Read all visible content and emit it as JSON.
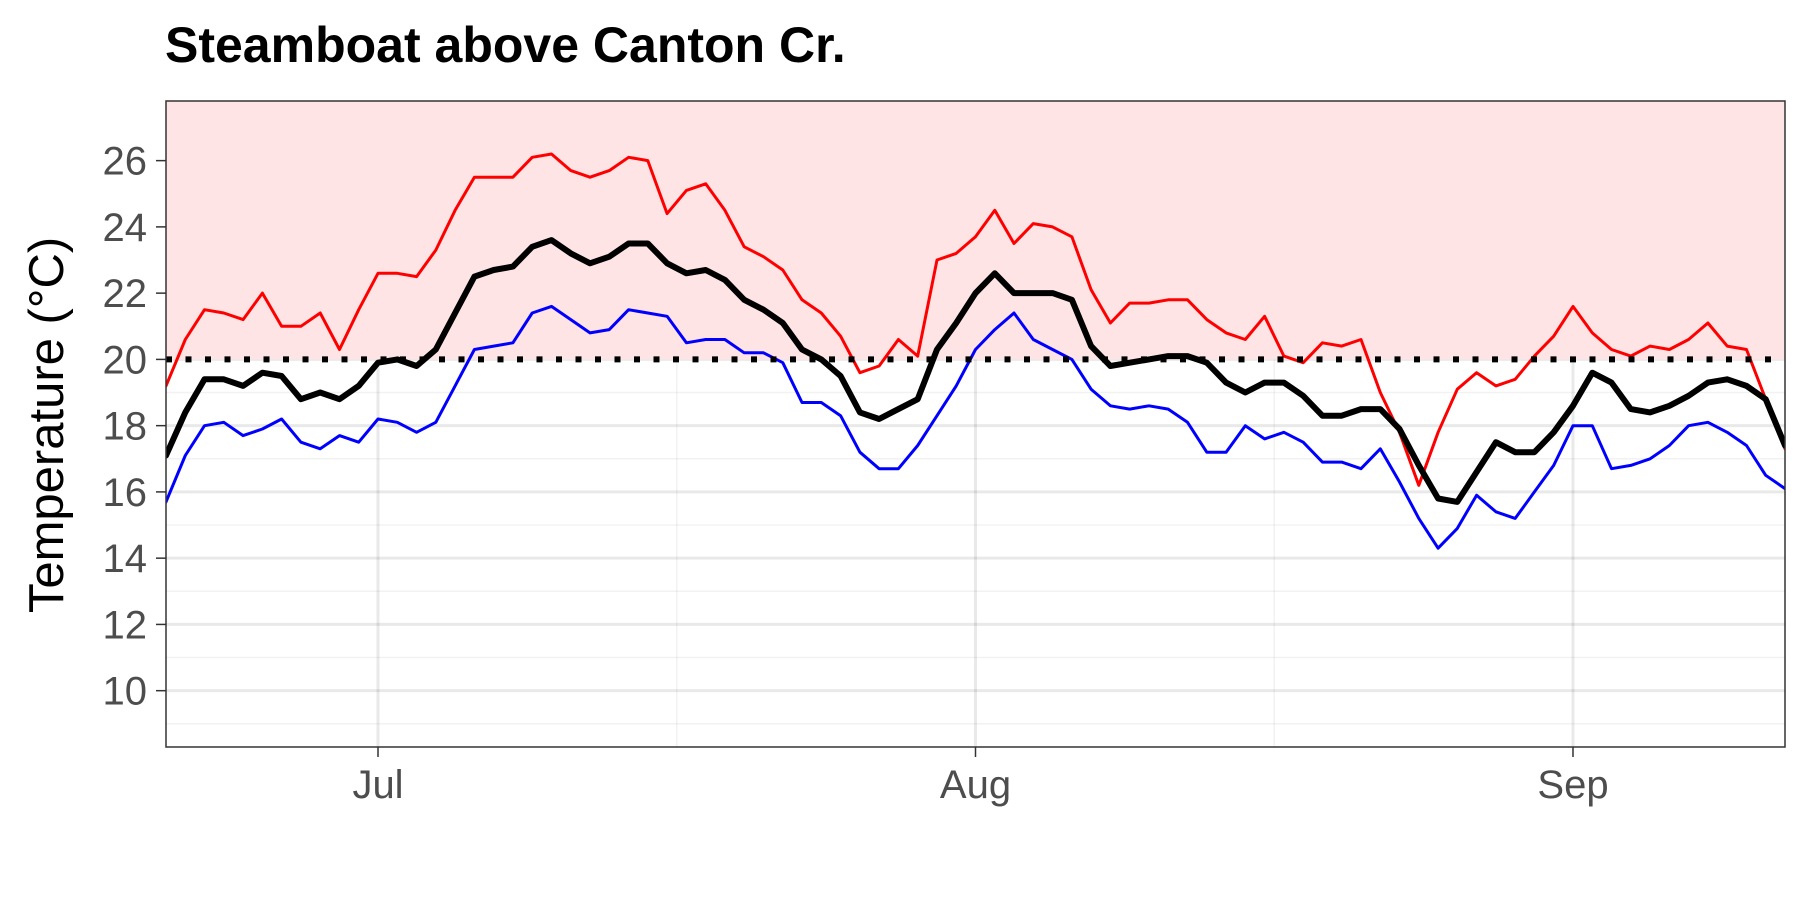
{
  "chart_data": {
    "type": "line",
    "title": "Steamboat above Canton Cr.",
    "xlabel": "",
    "ylabel": "Temperature (°C)",
    "threshold": 20,
    "shade_above_threshold": true,
    "x_start": "2023-06-20",
    "x_end": "2023-09-12",
    "x_ticks": [
      {
        "date": "2023-07-01",
        "label": "Jul"
      },
      {
        "date": "2023-08-01",
        "label": "Aug"
      },
      {
        "date": "2023-09-01",
        "label": "Sep"
      }
    ],
    "ylim": [
      8.3,
      27.8
    ],
    "y_ticks": [
      10,
      12,
      14,
      16,
      18,
      20,
      22,
      24,
      26
    ],
    "grid": true,
    "legend": "none",
    "colors": {
      "max": "#ff0000",
      "mean": "#000000",
      "min": "#0000ff",
      "shade": "#ffe4e6",
      "threshold": "#000000"
    },
    "dates": [
      "2023-06-20",
      "2023-06-21",
      "2023-06-22",
      "2023-06-23",
      "2023-06-24",
      "2023-06-25",
      "2023-06-26",
      "2023-06-27",
      "2023-06-28",
      "2023-06-29",
      "2023-06-30",
      "2023-07-01",
      "2023-07-02",
      "2023-07-03",
      "2023-07-04",
      "2023-07-05",
      "2023-07-06",
      "2023-07-07",
      "2023-07-08",
      "2023-07-09",
      "2023-07-10",
      "2023-07-11",
      "2023-07-12",
      "2023-07-13",
      "2023-07-14",
      "2023-07-15",
      "2023-07-16",
      "2023-07-17",
      "2023-07-18",
      "2023-07-19",
      "2023-07-20",
      "2023-07-21",
      "2023-07-22",
      "2023-07-23",
      "2023-07-24",
      "2023-07-25",
      "2023-07-26",
      "2023-07-27",
      "2023-07-28",
      "2023-07-29",
      "2023-07-30",
      "2023-07-31",
      "2023-08-01",
      "2023-08-02",
      "2023-08-03",
      "2023-08-04",
      "2023-08-05",
      "2023-08-06",
      "2023-08-07",
      "2023-08-08",
      "2023-08-09",
      "2023-08-10",
      "2023-08-11",
      "2023-08-12",
      "2023-08-13",
      "2023-08-14",
      "2023-08-15",
      "2023-08-16",
      "2023-08-17",
      "2023-08-18",
      "2023-08-19",
      "2023-08-20",
      "2023-08-21",
      "2023-08-22",
      "2023-08-23",
      "2023-08-24",
      "2023-08-25",
      "2023-08-26",
      "2023-08-27",
      "2023-08-28",
      "2023-08-29",
      "2023-08-30",
      "2023-08-31",
      "2023-09-01",
      "2023-09-02",
      "2023-09-03",
      "2023-09-04",
      "2023-09-05",
      "2023-09-06",
      "2023-09-07",
      "2023-09-08",
      "2023-09-09",
      "2023-09-10",
      "2023-09-11",
      "2023-09-12"
    ],
    "series": [
      {
        "key": "max",
        "values": [
          19.2,
          20.6,
          21.5,
          21.4,
          21.2,
          22.0,
          21.0,
          21.0,
          21.4,
          20.3,
          21.5,
          22.6,
          22.6,
          22.5,
          23.3,
          24.5,
          25.5,
          25.5,
          25.5,
          26.1,
          26.2,
          25.7,
          25.5,
          25.7,
          26.1,
          26.0,
          24.4,
          25.1,
          25.3,
          24.5,
          23.4,
          23.1,
          22.7,
          21.8,
          21.4,
          20.7,
          19.6,
          19.8,
          20.6,
          20.1,
          23.0,
          23.2,
          23.7,
          24.5,
          23.5,
          24.1,
          24.0,
          23.7,
          22.1,
          21.1,
          21.7,
          21.7,
          21.8,
          21.8,
          21.2,
          20.8,
          20.6,
          21.3,
          20.1,
          19.9,
          20.5,
          20.4,
          20.6,
          19.0,
          17.8,
          16.2,
          17.8,
          19.1,
          19.6,
          19.2,
          19.4,
          20.1,
          20.7,
          21.6,
          20.8,
          20.3,
          20.1,
          20.4,
          20.3,
          20.6,
          21.1,
          20.4,
          20.3,
          18.8,
          17.3
        ]
      },
      {
        "key": "mean",
        "values": [
          17.1,
          18.4,
          19.4,
          19.4,
          19.2,
          19.6,
          19.5,
          18.8,
          19.0,
          18.8,
          19.2,
          19.9,
          20.0,
          19.8,
          20.3,
          21.4,
          22.5,
          22.7,
          22.8,
          23.4,
          23.6,
          23.2,
          22.9,
          23.1,
          23.5,
          23.5,
          22.9,
          22.6,
          22.7,
          22.4,
          21.8,
          21.5,
          21.1,
          20.3,
          20.0,
          19.5,
          18.4,
          18.2,
          18.5,
          18.8,
          20.3,
          21.1,
          22.0,
          22.6,
          22.0,
          22.0,
          22.0,
          21.8,
          20.4,
          19.8,
          19.9,
          20.0,
          20.1,
          20.1,
          19.9,
          19.3,
          19.0,
          19.3,
          19.3,
          18.9,
          18.3,
          18.3,
          18.5,
          18.5,
          17.9,
          16.8,
          15.8,
          15.7,
          16.6,
          17.5,
          17.2,
          17.2,
          17.8,
          18.6,
          19.6,
          19.3,
          18.5,
          18.4,
          18.6,
          18.9,
          19.3,
          19.4,
          19.2,
          18.8,
          17.4
        ]
      },
      {
        "key": "min",
        "values": [
          15.7,
          17.1,
          18.0,
          18.1,
          17.7,
          17.9,
          18.2,
          17.5,
          17.3,
          17.7,
          17.5,
          18.2,
          18.1,
          17.8,
          18.1,
          19.2,
          20.3,
          20.4,
          20.5,
          21.4,
          21.6,
          21.2,
          20.8,
          20.9,
          21.5,
          21.4,
          21.3,
          20.5,
          20.6,
          20.6,
          20.2,
          20.2,
          19.9,
          18.7,
          18.7,
          18.3,
          17.2,
          16.7,
          16.7,
          17.4,
          18.3,
          19.2,
          20.3,
          20.9,
          21.4,
          20.6,
          20.3,
          20.0,
          19.1,
          18.6,
          18.5,
          18.6,
          18.5,
          18.1,
          17.2,
          17.2,
          18.0,
          17.6,
          17.8,
          17.5,
          16.9,
          16.9,
          16.7,
          17.3,
          16.3,
          15.2,
          14.3,
          14.9,
          15.9,
          15.4,
          15.2,
          16.0,
          16.8,
          18.0,
          18.0,
          16.7,
          16.8,
          17.0,
          17.4,
          18.0,
          18.1,
          17.8,
          17.4,
          16.5,
          16.1
        ]
      }
    ]
  }
}
